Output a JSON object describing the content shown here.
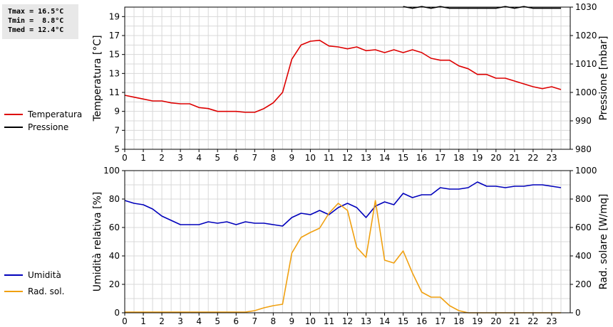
{
  "stats": {
    "tmax": "Tmax = 16.5°C",
    "tmin": "Tmin =  8.8°C",
    "tmed": "Tmed = 12.4°C"
  },
  "colors": {
    "temperatura": "#dd0000",
    "pressione": "#000000",
    "umidita": "#0000bb",
    "radiazione": "#f0a010",
    "grid": "#d8d8d8",
    "stats_bg": "#e8e8e8"
  },
  "legend": {
    "top": [
      {
        "label": "Temperatura",
        "color_key": "temperatura"
      },
      {
        "label": "Pressione",
        "color_key": "pressione"
      }
    ],
    "bottom": [
      {
        "label": "Umidità",
        "color_key": "umidita"
      },
      {
        "label": "Rad. sol.",
        "color_key": "radiazione"
      }
    ]
  },
  "chart_data": [
    {
      "type": "line",
      "xlim": [
        0,
        24
      ],
      "xticks": [
        0,
        1,
        2,
        3,
        4,
        5,
        6,
        7,
        8,
        9,
        10,
        11,
        12,
        13,
        14,
        15,
        16,
        17,
        18,
        19,
        20,
        21,
        22,
        23
      ],
      "ylabel_left": "Temperatura [°C]",
      "ylim_left": [
        5,
        20
      ],
      "yticks_left": [
        5,
        7,
        9,
        11,
        13,
        15,
        17,
        19
      ],
      "ylabel_right": "Pressione [mbar]",
      "ylim_right": [
        980,
        1030
      ],
      "yticks_right": [
        980,
        990,
        1000,
        1010,
        1020,
        1030
      ],
      "grid": true,
      "series": [
        {
          "name": "Temperatura",
          "axis": "left",
          "color_key": "temperatura",
          "x": [
            0,
            0.5,
            1,
            1.5,
            2,
            2.5,
            3,
            3.5,
            4,
            4.5,
            5,
            5.5,
            6,
            6.5,
            7,
            7.5,
            8,
            8.5,
            9,
            9.5,
            10,
            10.5,
            11,
            11.5,
            12,
            12.5,
            13,
            13.5,
            14,
            14.5,
            15,
            15.5,
            16,
            16.5,
            17,
            17.5,
            18,
            18.5,
            19,
            19.5,
            20,
            20.5,
            21,
            21.5,
            22,
            22.5,
            23,
            23.5
          ],
          "y": [
            10.7,
            10.5,
            10.3,
            10.1,
            10.1,
            9.9,
            9.8,
            9.8,
            9.4,
            9.3,
            9.0,
            9.0,
            9.0,
            8.9,
            8.9,
            9.3,
            9.9,
            11.0,
            14.5,
            16.0,
            16.4,
            16.5,
            15.9,
            15.8,
            15.6,
            15.8,
            15.4,
            15.5,
            15.2,
            15.5,
            15.2,
            15.5,
            15.2,
            14.6,
            14.4,
            14.4,
            13.8,
            13.5,
            12.9,
            12.9,
            12.5,
            12.5,
            12.2,
            11.9,
            11.6,
            11.4,
            11.6,
            11.3
          ]
        },
        {
          "name": "Pressione",
          "axis": "right",
          "color_key": "pressione",
          "x": [
            15,
            15.5,
            16,
            16.5,
            17,
            17.5,
            18,
            18.5,
            19,
            19.5,
            20,
            20.5,
            21,
            21.5,
            22,
            22.5,
            23,
            23.5
          ],
          "y": [
            1030.2,
            1029.6,
            1030.2,
            1029.6,
            1030.2,
            1029.6,
            1029.6,
            1029.6,
            1029.6,
            1029.6,
            1029.6,
            1030.2,
            1029.6,
            1030.2,
            1029.6,
            1029.6,
            1029.6,
            1029.6
          ]
        }
      ]
    },
    {
      "type": "line",
      "xlim": [
        0,
        24
      ],
      "xticks": [
        0,
        1,
        2,
        3,
        4,
        5,
        6,
        7,
        8,
        9,
        10,
        11,
        12,
        13,
        14,
        15,
        16,
        17,
        18,
        19,
        20,
        21,
        22,
        23
      ],
      "ylabel_left": "Umidità relativa [%]",
      "ylim_left": [
        0,
        100
      ],
      "yticks_left": [
        0,
        20,
        40,
        60,
        80,
        100
      ],
      "ylabel_right": "Rad. solare [W/mq]",
      "ylim_right": [
        0,
        1000
      ],
      "yticks_right": [
        0,
        200,
        400,
        600,
        800,
        1000
      ],
      "grid": true,
      "series": [
        {
          "name": "Umidità",
          "axis": "left",
          "color_key": "umidita",
          "x": [
            0,
            0.5,
            1,
            1.5,
            2,
            2.5,
            3,
            3.5,
            4,
            4.5,
            5,
            5.5,
            6,
            6.5,
            7,
            7.5,
            8,
            8.5,
            9,
            9.5,
            10,
            10.5,
            11,
            11.5,
            12,
            12.5,
            13,
            13.5,
            14,
            14.5,
            15,
            15.5,
            16,
            16.5,
            17,
            17.5,
            18,
            18.5,
            19,
            19.5,
            20,
            20.5,
            21,
            21.5,
            22,
            22.5,
            23,
            23.5
          ],
          "y": [
            79,
            77,
            76,
            73,
            68,
            65,
            62,
            62,
            62,
            64,
            63,
            64,
            62,
            64,
            63,
            63,
            62,
            61,
            67,
            70,
            69,
            72,
            69,
            74,
            77,
            74,
            67,
            75,
            78,
            76,
            84,
            81,
            83,
            83,
            88,
            87,
            87,
            88,
            92,
            89,
            89,
            88,
            89,
            89,
            90,
            90,
            89,
            88
          ]
        },
        {
          "name": "Rad. sol.",
          "axis": "right",
          "color_key": "radiazione",
          "x": [
            0,
            1,
            2,
            3,
            4,
            5,
            6,
            6.5,
            7,
            7.5,
            8,
            8.5,
            9,
            9.5,
            10,
            10.5,
            11,
            11.5,
            12,
            12.5,
            13,
            13.5,
            14,
            14.5,
            15,
            15.5,
            16,
            16.5,
            17,
            17.5,
            18,
            18.5,
            19,
            20,
            21,
            22,
            23,
            23.5
          ],
          "y": [
            5,
            5,
            5,
            5,
            5,
            5,
            5,
            5,
            15,
            35,
            50,
            60,
            420,
            530,
            565,
            595,
            700,
            770,
            720,
            460,
            390,
            790,
            370,
            350,
            435,
            280,
            145,
            110,
            110,
            50,
            15,
            0,
            0,
            0,
            0,
            0,
            0,
            0
          ]
        }
      ]
    }
  ]
}
